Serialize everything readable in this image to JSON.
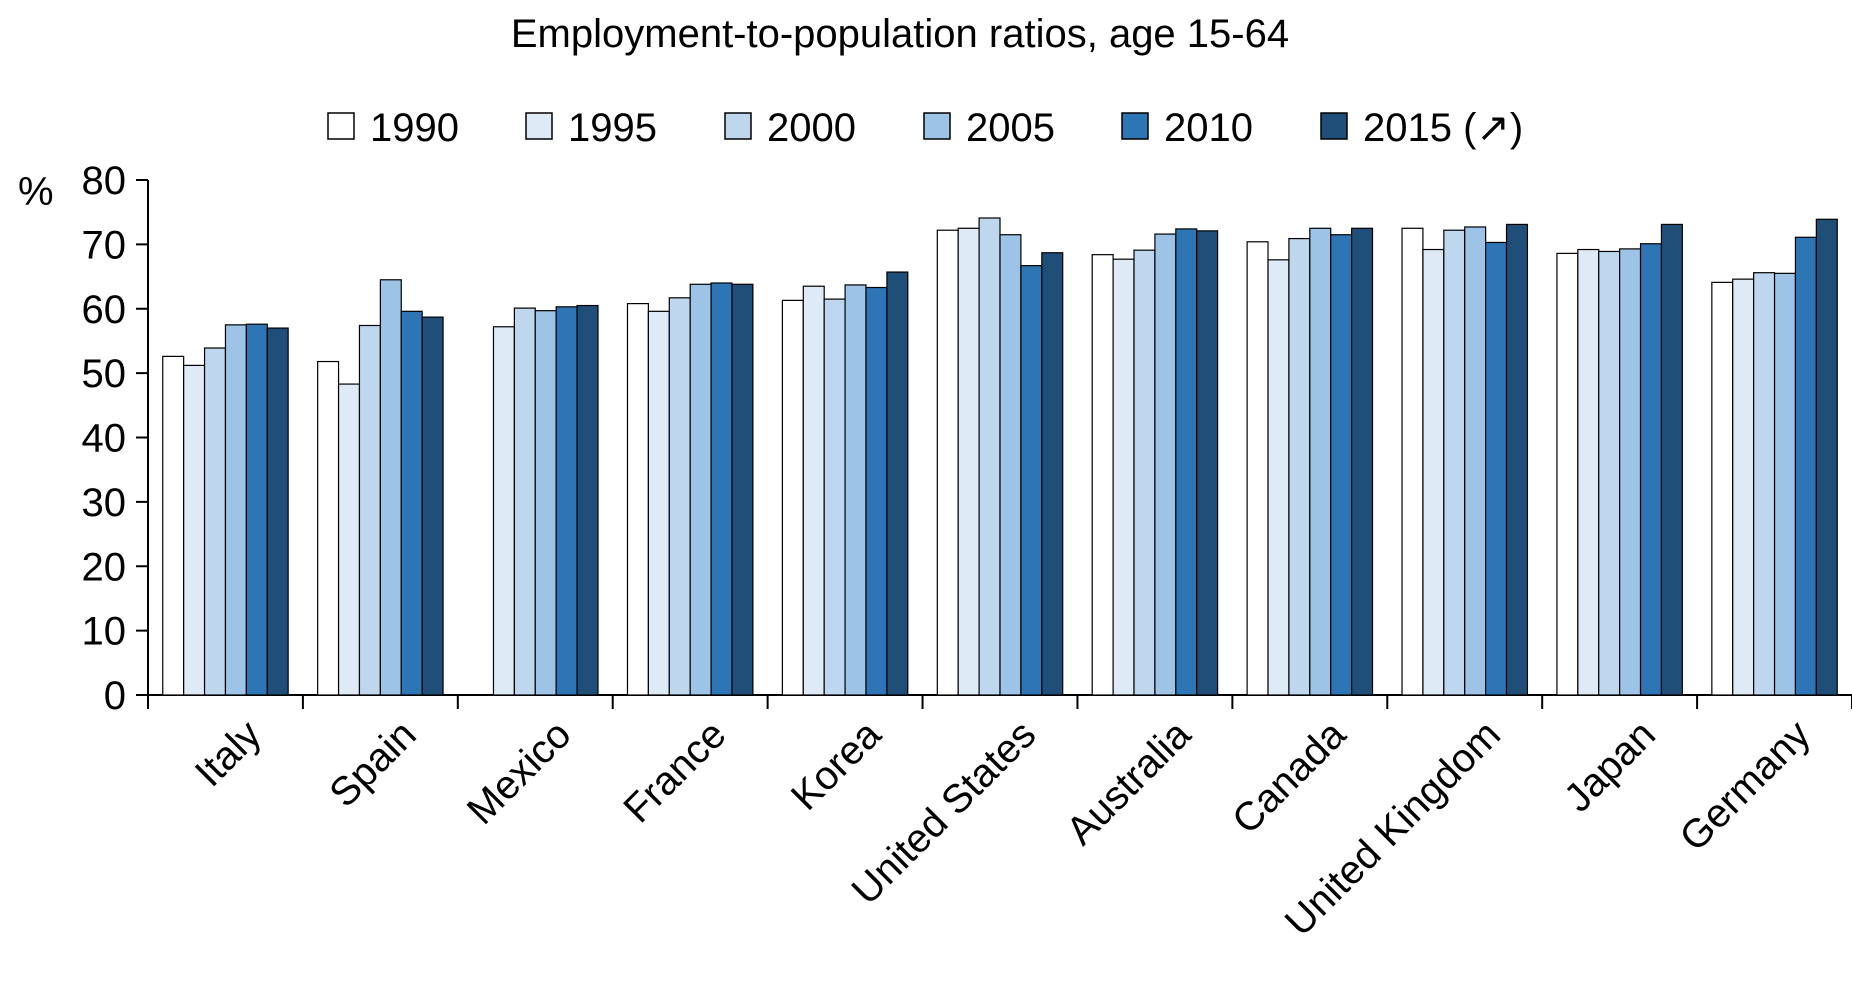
{
  "chart_data": {
    "type": "bar",
    "title": "Employment-to-population ratios, age 15-64",
    "ylabel": "%",
    "xlabel": "",
    "ylim": [
      0,
      80
    ],
    "yticks": [
      0,
      10,
      20,
      30,
      40,
      50,
      60,
      70,
      80
    ],
    "grid": false,
    "legend_position": "top",
    "categories": [
      "Italy",
      "Spain",
      "Mexico",
      "France",
      "Korea",
      "United States",
      "Australia",
      "Canada",
      "United Kingdom",
      "Japan",
      "Germany"
    ],
    "series": [
      {
        "name": "1990",
        "color": "#ffffff",
        "values": [
          52.6,
          51.8,
          null,
          60.8,
          61.3,
          72.2,
          68.4,
          70.4,
          72.5,
          68.6,
          64.1
        ]
      },
      {
        "name": "1995",
        "color": "#deebf7",
        "values": [
          51.2,
          48.3,
          57.2,
          59.6,
          63.5,
          72.5,
          67.7,
          67.6,
          69.2,
          69.2,
          64.6
        ]
      },
      {
        "name": "2000",
        "color": "#bfd7ee",
        "values": [
          53.9,
          57.4,
          60.1,
          61.7,
          61.5,
          74.1,
          69.1,
          70.9,
          72.2,
          68.9,
          65.6
        ]
      },
      {
        "name": "2005",
        "color": "#9dc3e6",
        "values": [
          57.5,
          64.5,
          59.7,
          63.8,
          63.7,
          71.5,
          71.6,
          72.5,
          72.7,
          69.3,
          65.5
        ]
      },
      {
        "name": "2010",
        "color": "#2e75b6",
        "values": [
          57.6,
          59.6,
          60.3,
          64.0,
          63.3,
          66.7,
          72.4,
          71.5,
          70.3,
          70.1,
          71.1
        ]
      },
      {
        "name": "2015 (↗)",
        "color": "#1f4e79",
        "values": [
          57.0,
          58.7,
          60.5,
          63.8,
          65.7,
          68.7,
          72.1,
          72.5,
          73.1,
          73.1,
          73.9
        ]
      }
    ]
  }
}
